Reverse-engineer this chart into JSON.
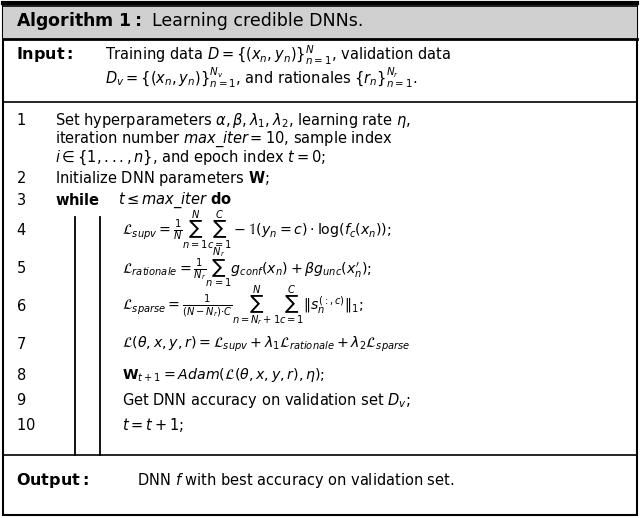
{
  "fig_width": 6.4,
  "fig_height": 5.18,
  "dpi": 100,
  "bg_color": "#ffffff",
  "header_bg": "#d8d8d8",
  "border_color": "#000000",
  "title_bold": "Algorithm 1:",
  "title_rest": " Learning credible DNNs.",
  "input_label": "Input:",
  "input_line1": "Training data $D = \\{(x_n, y_n)\\}_{n=1}^{N}$, validation data",
  "input_line2": "$D_v = \\{(x_n, y_n)\\}_{n=1}^{N_v}$, and rationales $\\{r_n\\}_{n=1}^{N_r}$.",
  "output_label": "Output:",
  "output_rest": "  DNN $f$ with best accuracy on validation set.",
  "fs": 11.5,
  "fs_small": 10.5,
  "fs_math": 10.2
}
